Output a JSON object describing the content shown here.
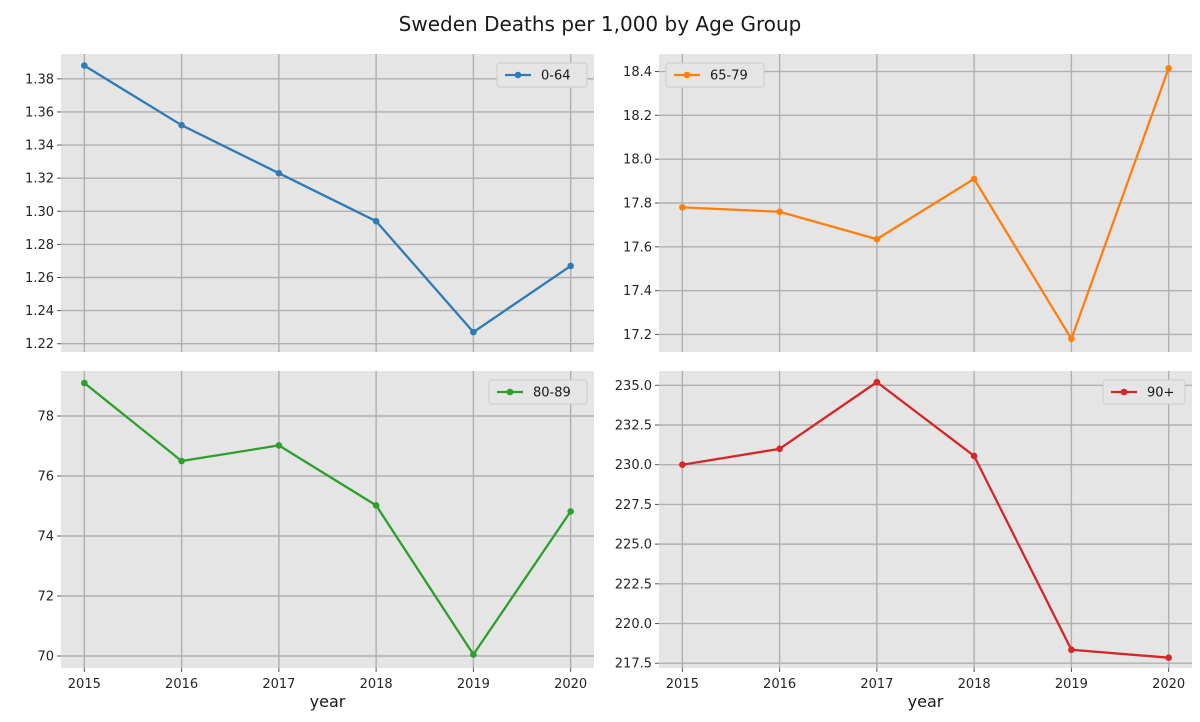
{
  "title": "Sweden Deaths per 1,000 by Age Group",
  "chart_data": [
    {
      "type": "line",
      "x": [
        2015,
        2016,
        2017,
        2018,
        2019,
        2020
      ],
      "series": [
        {
          "name": "0-64",
          "color": "#2f7bb6",
          "values": [
            1.388,
            1.352,
            1.323,
            1.294,
            1.227,
            1.267
          ]
        }
      ],
      "ylim": [
        1.215,
        1.395
      ],
      "yticks": [
        1.22,
        1.24,
        1.26,
        1.28,
        1.3,
        1.32,
        1.34,
        1.36,
        1.38
      ],
      "ytick_labels": [
        "1.22",
        "1.24",
        "1.26",
        "1.28",
        "1.30",
        "1.32",
        "1.34",
        "1.36",
        "1.38"
      ],
      "xticks": [],
      "xtick_labels": [],
      "xlabel": "",
      "grid": true,
      "legend": "top-right"
    },
    {
      "type": "line",
      "x": [
        2015,
        2016,
        2017,
        2018,
        2019,
        2020
      ],
      "series": [
        {
          "name": "65-79",
          "color": "#ff7f0e",
          "values": [
            17.78,
            17.76,
            17.635,
            17.91,
            17.18,
            18.415
          ]
        }
      ],
      "ylim": [
        17.12,
        18.48
      ],
      "yticks": [
        17.2,
        17.4,
        17.6,
        17.8,
        18.0,
        18.2,
        18.4
      ],
      "ytick_labels": [
        "17.2",
        "17.4",
        "17.6",
        "17.8",
        "18.0",
        "18.2",
        "18.4"
      ],
      "xticks": [],
      "xtick_labels": [],
      "xlabel": "",
      "grid": true,
      "legend": "top-left"
    },
    {
      "type": "line",
      "x": [
        2015,
        2016,
        2017,
        2018,
        2019,
        2020
      ],
      "series": [
        {
          "name": "80-89",
          "color": "#2ca02c",
          "values": [
            79.1,
            76.5,
            77.02,
            75.02,
            70.05,
            74.82
          ]
        }
      ],
      "ylim": [
        69.6,
        79.5
      ],
      "yticks": [
        70,
        72,
        74,
        76,
        78
      ],
      "ytick_labels": [
        "70",
        "72",
        "74",
        "76",
        "78"
      ],
      "xticks": [
        2015,
        2016,
        2017,
        2018,
        2019,
        2020
      ],
      "xtick_labels": [
        "2015",
        "2016",
        "2017",
        "2018",
        "2019",
        "2020"
      ],
      "xlabel": "year",
      "grid": true,
      "legend": "top-right"
    },
    {
      "type": "line",
      "x": [
        2015,
        2016,
        2017,
        2018,
        2019,
        2020
      ],
      "series": [
        {
          "name": "90+",
          "color": "#d62728",
          "values": [
            230.0,
            231.0,
            235.2,
            230.55,
            218.35,
            217.85
          ]
        }
      ],
      "ylim": [
        217.2,
        235.9
      ],
      "yticks": [
        217.5,
        220.0,
        222.5,
        225.0,
        227.5,
        230.0,
        232.5,
        235.0
      ],
      "ytick_labels": [
        "217.5",
        "220.0",
        "222.5",
        "225.0",
        "227.5",
        "230.0",
        "232.5",
        "235.0"
      ],
      "xticks": [
        2015,
        2016,
        2017,
        2018,
        2019,
        2020
      ],
      "xtick_labels": [
        "2015",
        "2016",
        "2017",
        "2018",
        "2019",
        "2020"
      ],
      "xlabel": "year",
      "grid": true,
      "legend": "top-right"
    }
  ]
}
